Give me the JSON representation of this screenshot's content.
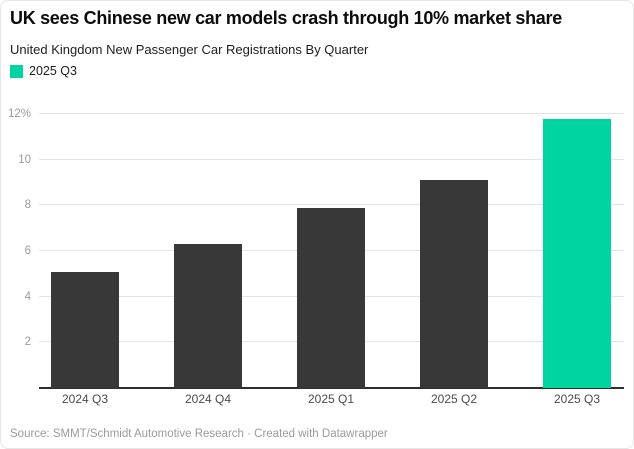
{
  "chart_data": {
    "type": "bar",
    "title": "UK sees Chinese new car models crash through 10% market share",
    "subtitle": "United Kingdom New Passenger Car Registrations By Quarter",
    "categories": [
      "2024 Q3",
      "2024 Q4",
      "2025 Q1",
      "2025 Q2",
      "2025 Q3"
    ],
    "values": [
      5.1,
      6.3,
      7.9,
      9.1,
      11.8
    ],
    "unit": "%",
    "xlabel": "",
    "ylabel": "",
    "ylim": [
      0,
      12.35
    ],
    "yticks": [
      2,
      4,
      6,
      8,
      10,
      12
    ],
    "ytick_labels": [
      "2",
      "4",
      "6",
      "8",
      "10",
      "12%"
    ],
    "grid": true,
    "legend": {
      "position": "top-left",
      "entries": [
        {
          "label": "2025 Q3",
          "color": "#00d5a1"
        }
      ]
    },
    "colors": {
      "default_bar": "#393839",
      "highlight_bar": "#00d5a1",
      "gridline": "#e4e4e4",
      "baseline": "#2e2e2e"
    },
    "highlight_index": 4,
    "source": "Source: SMMT/Schmidt Automotive Research · Created with Datawrapper"
  }
}
